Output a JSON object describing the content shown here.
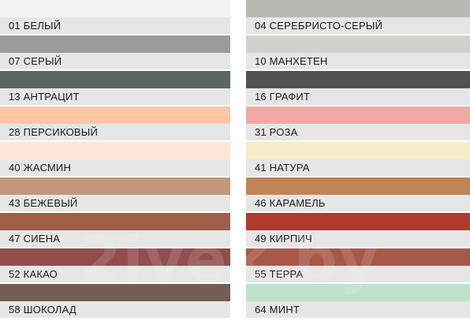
{
  "left_colors": [
    {
      "label": "01 БЕЛЫЙ",
      "color": "#f4f4f4"
    },
    {
      "label": "07 СЕРЫЙ",
      "color": "#9b9c98"
    },
    {
      "label": "13 АНТРАЦИТ",
      "color": "#5c665d"
    },
    {
      "label": "28 ПЕРСИКОВЫЙ",
      "color": "#fcc7a5"
    },
    {
      "label": "40 ЖАСМИН",
      "color": "#fde6da"
    },
    {
      "label": "43 БЕЖЕВЫЙ",
      "color": "#c1987c"
    },
    {
      "label": "47 СИЕНА",
      "color": "#a15d47"
    },
    {
      "label": "52 КАКАО",
      "color": "#914e4d"
    },
    {
      "label": "58 ШОКОЛАД",
      "color": "#735e55"
    }
  ],
  "right_colors": [
    {
      "label": "04 СЕРЕБРИСТО-СЕРЫЙ",
      "color": "#babab5"
    },
    {
      "label": "10 МАНХЕТЕН",
      "color": "#d2d2cd"
    },
    {
      "label": "16 ГРАФИТ",
      "color": "#4d5252"
    },
    {
      "label": "31 РОЗА",
      "color": "#f2a9a6"
    },
    {
      "label": "41 НАТУРА",
      "color": "#f7ebc8"
    },
    {
      "label": "46 КАРАМЕЛЬ",
      "color": "#c08459"
    },
    {
      "label": "49 КИРПИЧ",
      "color": "#b03a2b"
    },
    {
      "label": "55 ТЕРРА",
      "color": "#a85849"
    },
    {
      "label": "64 МИНТ",
      "color": "#bfe2cd"
    }
  ],
  "watermark": "2ivek.by"
}
